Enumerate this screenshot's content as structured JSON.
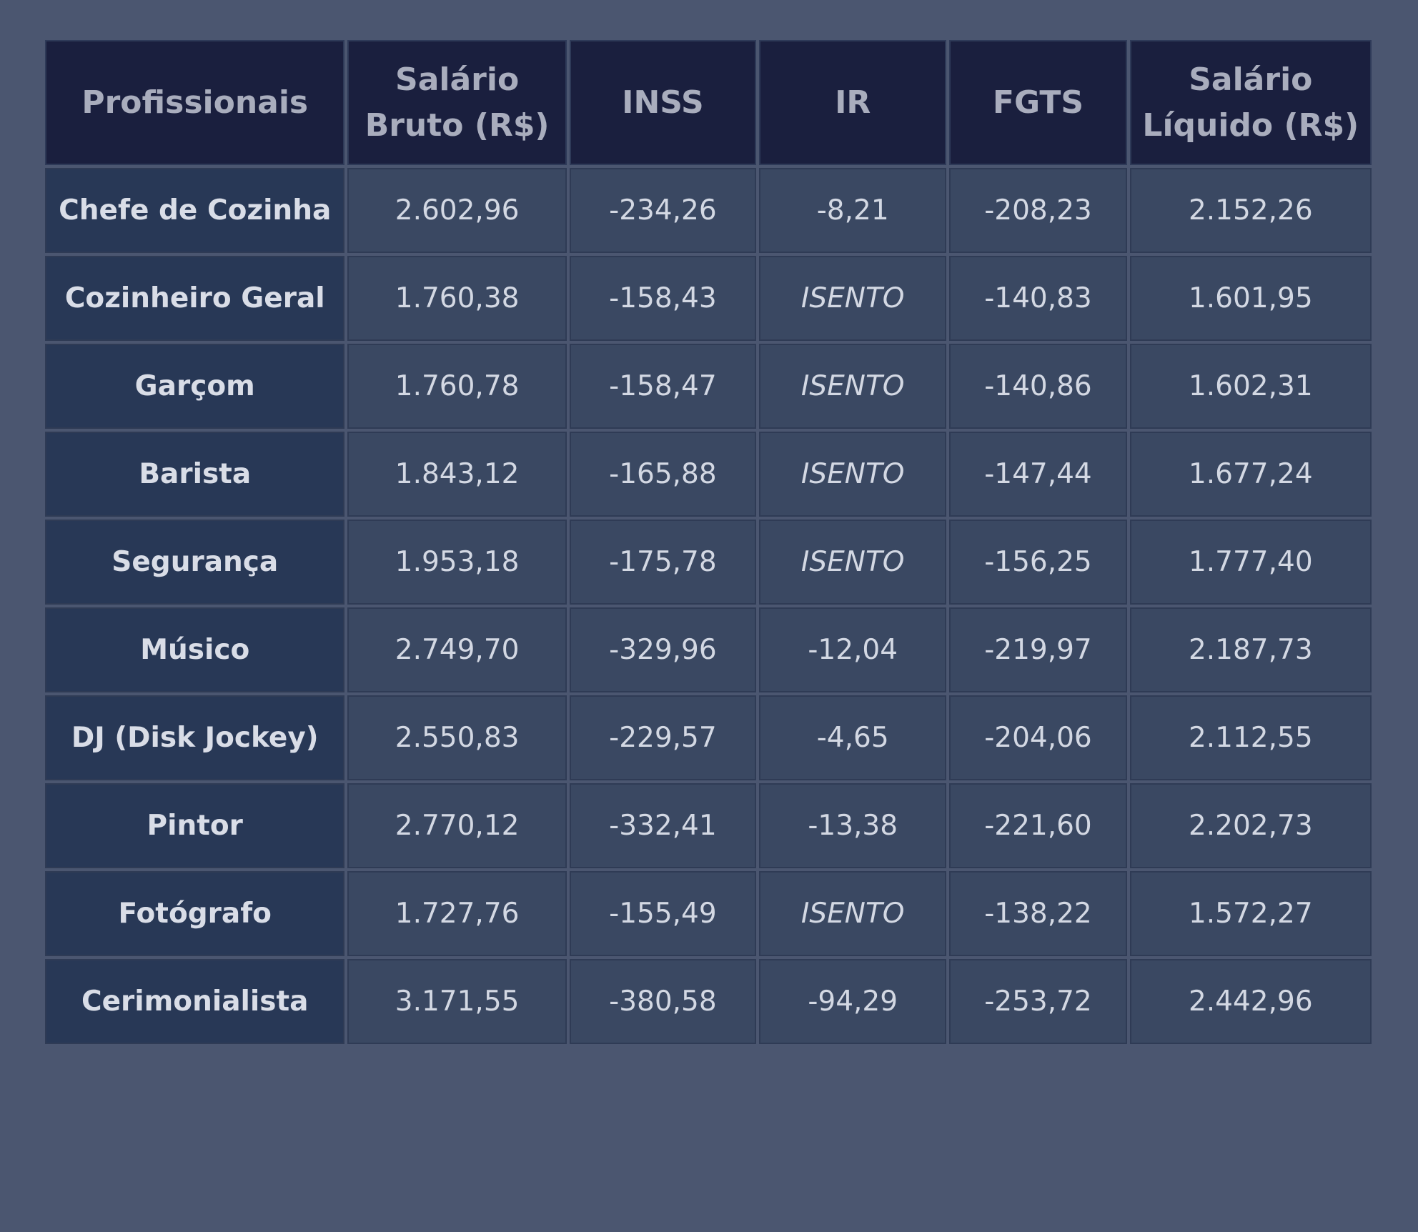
{
  "table": {
    "headers": [
      "Profissionais",
      "Salário Bruto (R$)",
      "INSS",
      "IR",
      "FGTS",
      "Salário Líquido (R$)"
    ],
    "rows": [
      [
        "Chefe de Cozinha",
        "2.602,96",
        "-234,26",
        "-8,21",
        "-208,23",
        "2.152,26"
      ],
      [
        "Cozinheiro Geral",
        "1.760,38",
        "-158,43",
        "ISENTO",
        "-140,83",
        "1.601,95"
      ],
      [
        "Garçom",
        "1.760,78",
        "-158,47",
        "ISENTO",
        "-140,86",
        "1.602,31"
      ],
      [
        "Barista",
        "1.843,12",
        "-165,88",
        "ISENTO",
        "-147,44",
        "1.677,24"
      ],
      [
        "Segurança",
        "1.953,18",
        "-175,78",
        "ISENTO",
        "-156,25",
        "1.777,40"
      ],
      [
        "Músico",
        "2.749,70",
        "-329,96",
        "-12,04",
        "-219,97",
        "2.187,73"
      ],
      [
        "DJ (Disk Jockey)",
        "2.550,83",
        "-229,57",
        "-4,65",
        "-204,06",
        "2.112,55"
      ],
      [
        "Pintor",
        "2.770,12",
        "-332,41",
        "-13,38",
        "-221,60",
        "2.202,73"
      ],
      [
        "Fotógrafo",
        "1.727,76",
        "-155,49",
        "ISENTO",
        "-138,22",
        "1.572,27"
      ],
      [
        "Cerimonialista",
        "3.171,55",
        "-380,58",
        "-94,29",
        "-253,72",
        "2.442,96"
      ]
    ]
  },
  "colors": {
    "page_background": "#4b5670",
    "header_background": "#1a1f3e",
    "header_text": "#a9adbd",
    "name_cell_background": "#283856",
    "cell_background": "#3a4862",
    "cell_text": "#d3d8e3"
  }
}
